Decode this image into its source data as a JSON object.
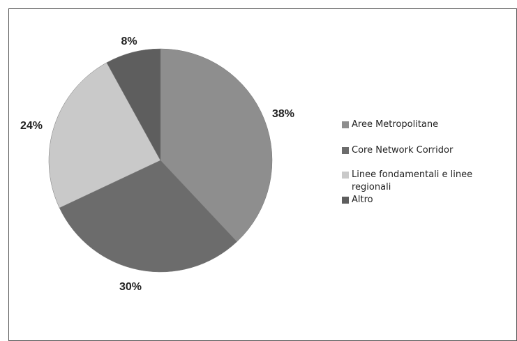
{
  "chart_data": {
    "type": "pie",
    "categories": [
      "Aree Metropolitane",
      "Core Network Corridor",
      "Linee fondamentali e linee regionali",
      "Altro"
    ],
    "values": [
      38,
      30,
      24,
      8
    ],
    "value_labels": [
      "38%",
      "30%",
      "24%",
      "8%"
    ],
    "colors": [
      "#8e8e8e",
      "#6c6c6c",
      "#c9c9c9",
      "#5e5e5e"
    ],
    "legend": "right"
  }
}
